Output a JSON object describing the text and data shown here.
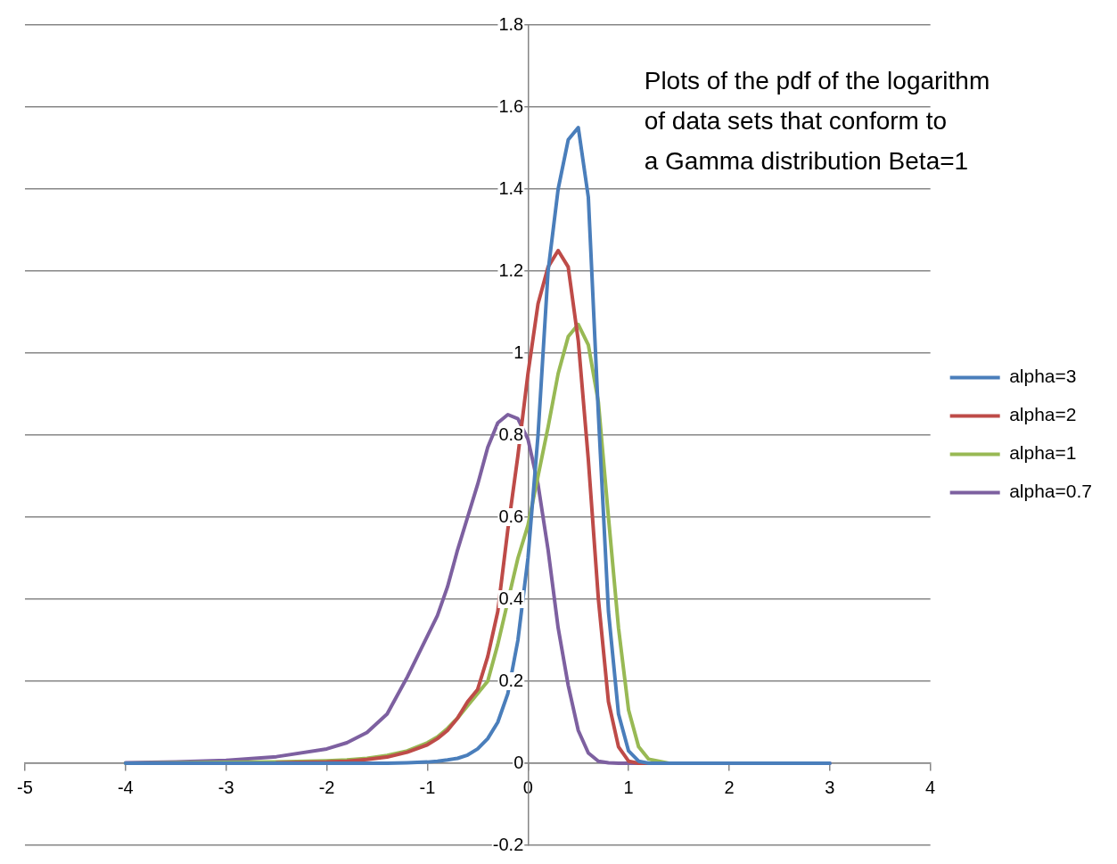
{
  "chart_data": {
    "type": "line",
    "title": "Plots of the pdf of the logarithm\nof data sets that conform to\na Gamma distribution Beta=1",
    "x": [
      -4,
      -3.5,
      -3,
      -2.5,
      -2,
      -1.8,
      -1.6,
      -1.4,
      -1.2,
      -1,
      -0.9,
      -0.8,
      -0.7,
      -0.6,
      -0.5,
      -0.4,
      -0.3,
      -0.2,
      -0.1,
      0,
      0.1,
      0.2,
      0.3,
      0.4,
      0.5,
      0.6,
      0.7,
      0.8,
      0.9,
      1,
      1.1,
      1.2,
      1.4,
      1.6,
      2,
      2.5,
      3
    ],
    "series": [
      {
        "name": "alpha=3",
        "color": "#4a7ebb",
        "values": [
          0,
          0,
          0,
          0,
          0,
          0,
          0,
          0,
          0.001,
          0.003,
          0.005,
          0.008,
          0.012,
          0.02,
          0.035,
          0.06,
          0.1,
          0.17,
          0.3,
          0.5,
          0.8,
          1.2,
          1.4,
          1.52,
          1.55,
          1.38,
          0.85,
          0.37,
          0.12,
          0.03,
          0.005,
          0,
          0,
          0,
          0,
          0,
          0
        ]
      },
      {
        "name": "alpha=2",
        "color": "#be4b48",
        "values": [
          null,
          null,
          null,
          0.001,
          0.003,
          0.005,
          0.009,
          0.015,
          0.027,
          0.045,
          0.06,
          0.08,
          0.11,
          0.15,
          0.18,
          0.26,
          0.37,
          0.57,
          0.75,
          0.95,
          1.12,
          1.21,
          1.25,
          1.21,
          1.03,
          0.74,
          0.4,
          0.15,
          0.04,
          0.005,
          0,
          0,
          0,
          null,
          null,
          null,
          null
        ]
      },
      {
        "name": "alpha=1",
        "color": "#98b954",
        "x": [
          -4,
          -3.5,
          -3,
          -2.5,
          -2,
          -1.8,
          -1.6,
          -1.4,
          -1.2,
          -1,
          -0.9,
          -0.8,
          -0.7,
          -0.6,
          -0.5,
          -0.4,
          -0.3,
          -0.1,
          0,
          0.1,
          0.2,
          0.3,
          0.4,
          0.5,
          0.6,
          0.7,
          0.8,
          0.9,
          1,
          1.1,
          1.2,
          1.4,
          1.6
        ],
        "values": [
          0,
          0.001,
          0.002,
          0.003,
          0.006,
          0.008,
          0.012,
          0.019,
          0.03,
          0.05,
          0.064,
          0.085,
          0.11,
          0.14,
          0.17,
          0.2,
          0.29,
          0.5,
          0.58,
          0.7,
          0.82,
          0.95,
          1.04,
          1.07,
          1.02,
          0.88,
          0.6,
          0.33,
          0.13,
          0.04,
          0.01,
          0,
          0
        ]
      },
      {
        "name": "alpha=0.7",
        "color": "#7d60a0",
        "values": [
          0.001,
          0.003,
          0.007,
          0.016,
          0.035,
          0.05,
          0.075,
          0.12,
          0.21,
          0.31,
          0.36,
          0.43,
          0.52,
          0.6,
          0.68,
          0.77,
          0.83,
          0.85,
          0.84,
          0.79,
          0.68,
          0.52,
          0.33,
          0.19,
          0.08,
          0.025,
          0.005,
          0.001,
          0,
          0,
          0,
          0,
          0,
          0,
          0,
          0,
          0
        ]
      }
    ],
    "xlim": [
      -5,
      4
    ],
    "xticks": [
      -5,
      -4,
      -3,
      -2,
      -1,
      0,
      1,
      2,
      3,
      4
    ],
    "ylim": [
      -0.2,
      1.8
    ],
    "yticks": [
      -0.2,
      0,
      0.2,
      0.4,
      0.6,
      0.8,
      1,
      1.2,
      1.4,
      1.6,
      1.8
    ],
    "grid": "y",
    "legend": "right",
    "marker": "none",
    "line_style": "solid"
  }
}
